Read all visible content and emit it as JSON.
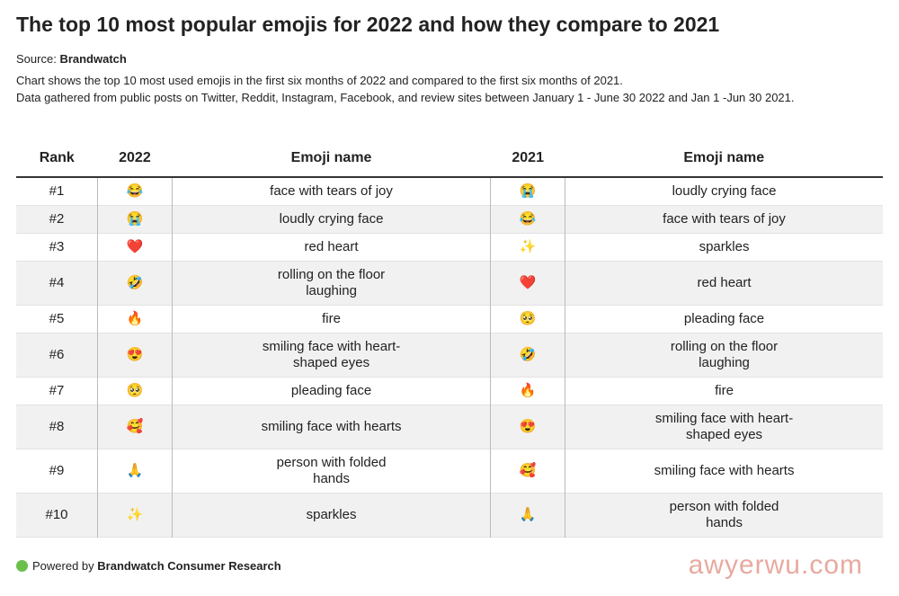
{
  "header": {
    "title": "The top 10 most popular emojis for 2022 and how they compare to 2021",
    "source_label": "Source:",
    "source_name": "Brandwatch",
    "description": [
      "Chart shows the top 10 most used emojis in the first six months of 2022 and compared to the first six months of 2021.",
      "Data gathered from public posts on Twitter, Reddit, Instagram, Facebook, and review sites between January 1 - June 30 2022 and Jan 1 -Jun 30 2021."
    ]
  },
  "table": {
    "columns": [
      "Rank",
      "2022",
      "Emoji name",
      "2021",
      "Emoji name"
    ],
    "rows": [
      [
        "#1",
        "😂",
        "face with tears of joy",
        "😭",
        "loudly crying face"
      ],
      [
        "#2",
        "😭",
        "loudly crying face",
        "😂",
        "face with tears of joy"
      ],
      [
        "#3",
        "❤️",
        "red heart",
        "✨",
        "sparkles"
      ],
      [
        "#4",
        "🤣",
        "rolling on the floor laughing",
        "❤️",
        "red heart"
      ],
      [
        "#5",
        "🔥",
        "fire",
        "🥺",
        "pleading face"
      ],
      [
        "#6",
        "😍",
        "smiling face with heart-shaped eyes",
        "🤣",
        "rolling on the floor laughing"
      ],
      [
        "#7",
        "🥺",
        "pleading face",
        "🔥",
        "fire"
      ],
      [
        "#8",
        "🥰",
        "smiling face with hearts",
        "😍",
        "smiling face with heart-shaped eyes"
      ],
      [
        "#9",
        "🙏",
        "person with folded hands",
        "🥰",
        "smiling face with hearts"
      ],
      [
        "#10",
        "✨",
        "sparkles",
        "🙏",
        "person with folded hands"
      ]
    ]
  },
  "footer": {
    "prefix": "Powered by",
    "brand": "Brandwatch Consumer Research",
    "watermark": "awyerwu.com"
  }
}
